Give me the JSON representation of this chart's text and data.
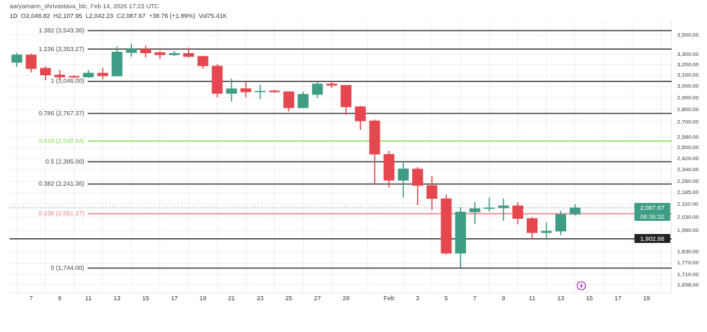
{
  "chart_data": {
    "type": "candlestick",
    "annotations": [
      "aaryamann_shrivastava_blc, Feb 14, 2026 17:23 UTC",
      "1D  O2,048.82  H2,107.95  L2,042.23  C2,087.67  +38.76 (+1.89%)  Vol75.41K",
      {
        "text": "2,087.67",
        "y": 2087.67
      },
      {
        "text": "06:36:32",
        "y": 2087.67
      },
      {
        "text": "1,902.88",
        "y": 1902.88
      }
    ],
    "x": [
      "2026-01-06",
      "2026-01-07",
      "2026-01-08",
      "2026-01-09",
      "2026-01-10",
      "2026-01-11",
      "2026-01-12",
      "2026-01-13",
      "2026-01-14",
      "2026-01-15",
      "2026-01-16",
      "2026-01-17",
      "2026-01-18",
      "2026-01-19",
      "2026-01-20",
      "2026-01-21",
      "2026-01-22",
      "2026-01-23",
      "2026-01-24",
      "2026-01-25",
      "2026-01-26",
      "2026-01-27",
      "2026-01-28",
      "2026-01-29",
      "2026-01-30",
      "2026-01-31",
      "2026-02-01",
      "2026-02-02",
      "2026-02-03",
      "2026-02-04",
      "2026-02-05",
      "2026-02-06",
      "2026-02-07",
      "2026-02-08",
      "2026-02-09",
      "2026-02-10",
      "2026-02-11",
      "2026-02-12",
      "2026-02-13",
      "2026-02-14"
    ],
    "ohlc": [
      [
        3222,
        3314,
        3182,
        3296
      ],
      [
        3296,
        3305,
        3129,
        3164
      ],
      [
        3167,
        3184,
        3057,
        3104
      ],
      [
        3104,
        3149,
        3063,
        3085
      ],
      [
        3091,
        3100,
        3076,
        3083
      ],
      [
        3085,
        3150,
        3080,
        3122
      ],
      [
        3122,
        3169,
        3068,
        3096
      ],
      [
        3094,
        3378,
        3094,
        3324
      ],
      [
        3319,
        3404,
        3280,
        3354
      ],
      [
        3354,
        3385,
        3273,
        3316
      ],
      [
        3319,
        3331,
        3257,
        3296
      ],
      [
        3296,
        3331,
        3286,
        3310
      ],
      [
        3310,
        3366,
        3273,
        3280
      ],
      [
        3282,
        3286,
        3167,
        3189
      ],
      [
        3189,
        3204,
        2906,
        2937
      ],
      [
        2937,
        3068,
        2868,
        2979
      ],
      [
        2981,
        3038,
        2906,
        2951
      ],
      [
        2951,
        3014,
        2890,
        2957
      ],
      [
        2960,
        2968,
        2943,
        2951
      ],
      [
        2953,
        2953,
        2786,
        2815
      ],
      [
        2815,
        2951,
        2815,
        2930
      ],
      [
        2929,
        3036,
        2900,
        3023
      ],
      [
        3023,
        3046,
        2987,
        3010
      ],
      [
        3010,
        3010,
        2757,
        2822
      ],
      [
        2824,
        2830,
        2637,
        2707
      ],
      [
        2707,
        2716,
        2241,
        2450
      ],
      [
        2450,
        2475,
        2220,
        2267
      ],
      [
        2267,
        2391,
        2155,
        2346
      ],
      [
        2345,
        2357,
        2106,
        2232
      ],
      [
        2231,
        2294,
        2076,
        2146
      ],
      [
        2146,
        2171,
        1817,
        1823
      ],
      [
        1823,
        2091,
        1747,
        2062
      ],
      [
        2062,
        2124,
        1991,
        2083
      ],
      [
        2083,
        2151,
        2066,
        2088
      ],
      [
        2087,
        2146,
        2009,
        2101
      ],
      [
        2101,
        2121,
        1989,
        2022
      ],
      [
        2022,
        2030,
        1905,
        1938
      ],
      [
        1938,
        1997,
        1898,
        1948
      ],
      [
        1947,
        2069,
        1925,
        2047
      ],
      [
        2048.82,
        2107.95,
        2042.23,
        2087.67
      ]
    ],
    "colors": [
      "#3f9d85",
      "#e5474f",
      "#e5474f",
      "#e5474f",
      "#e5474f",
      "#3f9d85",
      "#e5474f",
      "#3f9d85",
      "#3f9d85",
      "#e5474f",
      "#e5474f",
      "#3f9d85",
      "#e5474f",
      "#e5474f",
      "#e5474f",
      "#3f9d85",
      "#e5474f",
      "#3f9d85",
      "#e5474f",
      "#e5474f",
      "#3f9d85",
      "#3f9d85",
      "#e5474f",
      "#e5474f",
      "#e5474f",
      "#e5474f",
      "#e5474f",
      "#3f9d85",
      "#e5474f",
      "#e5474f",
      "#e5474f",
      "#3f9d85",
      "#3f9d85",
      "#3f9d85",
      "#3f9d85",
      "#e5474f",
      "#e5474f",
      "#3f9d85",
      "#3f9d85",
      "#3f9d85"
    ],
    "xlim": [
      "2026-01-05T12:00",
      "2026-02-20T18:00"
    ],
    "xticks": [
      {
        "value": "2026-01-07",
        "label": "7"
      },
      {
        "value": "2026-01-09",
        "label": "9"
      },
      {
        "value": "2026-01-11",
        "label": "11"
      },
      {
        "value": "2026-01-13",
        "label": "13"
      },
      {
        "value": "2026-01-15",
        "label": "15"
      },
      {
        "value": "2026-01-17",
        "label": "17"
      },
      {
        "value": "2026-01-19",
        "label": "19"
      },
      {
        "value": "2026-01-21",
        "label": "21"
      },
      {
        "value": "2026-01-23",
        "label": "23"
      },
      {
        "value": "2026-01-25",
        "label": "25"
      },
      {
        "value": "2026-01-27",
        "label": "27"
      },
      {
        "value": "2026-01-29",
        "label": "29"
      },
      {
        "value": "2026-02-01",
        "label": "Feb"
      },
      {
        "value": "2026-02-03",
        "label": "3"
      },
      {
        "value": "2026-02-05",
        "label": "5"
      },
      {
        "value": "2026-02-07",
        "label": "7"
      },
      {
        "value": "2026-02-09",
        "label": "9"
      },
      {
        "value": "2026-02-11",
        "label": "11"
      },
      {
        "value": "2026-02-13",
        "label": "13"
      },
      {
        "value": "2026-02-15",
        "label": "15"
      },
      {
        "value": "2026-02-17",
        "label": "17"
      },
      {
        "value": "2026-02-19",
        "label": "19"
      }
    ],
    "ylim": [
      1620,
      3650
    ],
    "log": true,
    "yticks": [
      {
        "value": 3500,
        "label": "3,500.00"
      },
      {
        "value": 3300,
        "label": "3,300.00"
      },
      {
        "value": 3200,
        "label": "3,200.00"
      },
      {
        "value": 3100,
        "label": "3,100.00"
      },
      {
        "value": 3000,
        "label": "3,000.00"
      },
      {
        "value": 2900,
        "label": "2,900.00"
      },
      {
        "value": 2800,
        "label": "2,800.00"
      },
      {
        "value": 2700,
        "label": "2,700.00"
      },
      {
        "value": 2580,
        "label": "2,580.00"
      },
      {
        "value": 2500,
        "label": "2,500.00"
      },
      {
        "value": 2420,
        "label": "2,420.00"
      },
      {
        "value": 2340,
        "label": "2,340.00"
      },
      {
        "value": 2260,
        "label": "2,260.00"
      },
      {
        "value": 2185,
        "label": "2,185.00"
      },
      {
        "value": 2110,
        "label": "2,110.00"
      },
      {
        "value": 2030,
        "label": "2,030.00"
      },
      {
        "value": 1950,
        "label": "1,950.00"
      },
      {
        "value": 1830,
        "label": "1,830.00"
      },
      {
        "value": 1770,
        "label": "1,770.00"
      },
      {
        "value": 1710,
        "label": "1,710.00"
      },
      {
        "value": 1658,
        "label": "1,658.00"
      }
    ],
    "ref_lines": [
      {
        "axis": "y",
        "value": 3543.36,
        "label": "1.382 (3,543.36)",
        "color": "#4a4a4a"
      },
      {
        "axis": "y",
        "value": 3353.27,
        "label": "1.236 (3,353.27)",
        "color": "#4a4a4a"
      },
      {
        "axis": "y",
        "value": 3046,
        "label": "1 (3,046.00)",
        "color": "#4a4a4a"
      },
      {
        "axis": "y",
        "value": 2767.37,
        "label": "0.786 (2,767.37)",
        "color": "#4a4a4a"
      },
      {
        "axis": "y",
        "value": 2548.64,
        "label": "0.618 (2,548.64)",
        "color": "#8cdc5a"
      },
      {
        "axis": "y",
        "value": 2395,
        "label": "0.5 (2,395.00)",
        "color": "#4a4a4a"
      },
      {
        "axis": "y",
        "value": 2241.36,
        "label": "0.382 (2,241.36)",
        "color": "#4a4a4a"
      },
      {
        "axis": "y",
        "value": 2051.27,
        "label": "0.236 (2,051.27)",
        "color": "#f08282"
      },
      {
        "axis": "y",
        "value": 1744,
        "label": "0 (1,744.00)",
        "color": "#4a4a4a"
      },
      {
        "axis": "y",
        "value": 1902.88,
        "color": "#222222"
      },
      {
        "axis": "y",
        "value": 2087.67,
        "color": "#3f9d85",
        "line_style": "dotted"
      }
    ],
    "grid": true,
    "legend": false
  }
}
